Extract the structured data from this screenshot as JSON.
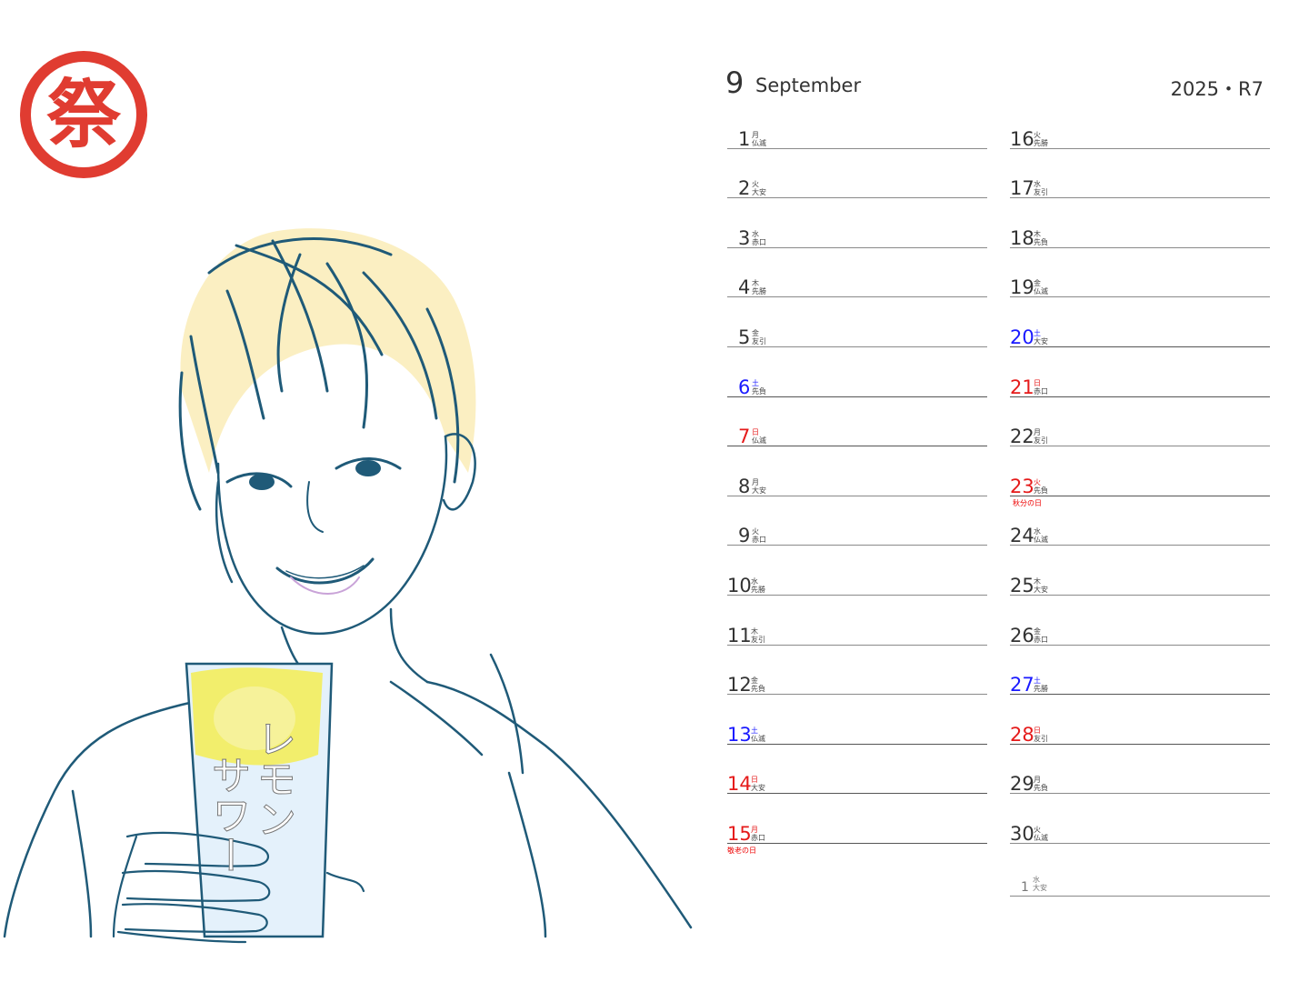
{
  "stamp": {
    "char": "祭"
  },
  "artwork": {
    "glass_text": [
      "レモン",
      "サワー"
    ]
  },
  "header": {
    "month_num": "9",
    "month_name": "September",
    "year": "2025・R7"
  },
  "colors": {
    "saturday": "#1a1aff",
    "sunday_holiday": "#e51a1a",
    "stamp": "#e03c31"
  },
  "left_days": [
    {
      "day": "1",
      "weekday": "月",
      "rokuyo": "仏滅",
      "type": "normal",
      "holiday": ""
    },
    {
      "day": "2",
      "weekday": "火",
      "rokuyo": "大安",
      "type": "normal",
      "holiday": ""
    },
    {
      "day": "3",
      "weekday": "水",
      "rokuyo": "赤口",
      "type": "normal",
      "holiday": ""
    },
    {
      "day": "4",
      "weekday": "木",
      "rokuyo": "先勝",
      "type": "normal",
      "holiday": ""
    },
    {
      "day": "5",
      "weekday": "金",
      "rokuyo": "友引",
      "type": "normal",
      "holiday": ""
    },
    {
      "day": "6",
      "weekday": "土",
      "rokuyo": "先負",
      "type": "sat",
      "holiday": ""
    },
    {
      "day": "7",
      "weekday": "日",
      "rokuyo": "仏滅",
      "type": "sun",
      "holiday": ""
    },
    {
      "day": "8",
      "weekday": "月",
      "rokuyo": "大安",
      "type": "normal",
      "holiday": ""
    },
    {
      "day": "9",
      "weekday": "火",
      "rokuyo": "赤口",
      "type": "normal",
      "holiday": ""
    },
    {
      "day": "10",
      "weekday": "水",
      "rokuyo": "先勝",
      "type": "normal",
      "holiday": ""
    },
    {
      "day": "11",
      "weekday": "木",
      "rokuyo": "友引",
      "type": "normal",
      "holiday": ""
    },
    {
      "day": "12",
      "weekday": "金",
      "rokuyo": "先負",
      "type": "normal",
      "holiday": ""
    },
    {
      "day": "13",
      "weekday": "土",
      "rokuyo": "仏滅",
      "type": "sat",
      "holiday": ""
    },
    {
      "day": "14",
      "weekday": "日",
      "rokuyo": "大安",
      "type": "sun",
      "holiday": ""
    },
    {
      "day": "15",
      "weekday": "月",
      "rokuyo": "赤口",
      "type": "sun",
      "holiday": "敬老の日"
    }
  ],
  "right_days": [
    {
      "day": "16",
      "weekday": "火",
      "rokuyo": "先勝",
      "type": "normal",
      "holiday": ""
    },
    {
      "day": "17",
      "weekday": "水",
      "rokuyo": "友引",
      "type": "normal",
      "holiday": ""
    },
    {
      "day": "18",
      "weekday": "木",
      "rokuyo": "先負",
      "type": "normal",
      "holiday": ""
    },
    {
      "day": "19",
      "weekday": "金",
      "rokuyo": "仏滅",
      "type": "normal",
      "holiday": ""
    },
    {
      "day": "20",
      "weekday": "土",
      "rokuyo": "大安",
      "type": "sat",
      "holiday": ""
    },
    {
      "day": "21",
      "weekday": "日",
      "rokuyo": "赤口",
      "type": "sun",
      "holiday": ""
    },
    {
      "day": "22",
      "weekday": "月",
      "rokuyo": "友引",
      "type": "normal",
      "holiday": ""
    },
    {
      "day": "23",
      "weekday": "火",
      "rokuyo": "先負",
      "type": "sun",
      "holiday": "秋分の日"
    },
    {
      "day": "24",
      "weekday": "水",
      "rokuyo": "仏滅",
      "type": "normal",
      "holiday": ""
    },
    {
      "day": "25",
      "weekday": "木",
      "rokuyo": "大安",
      "type": "normal",
      "holiday": ""
    },
    {
      "day": "26",
      "weekday": "金",
      "rokuyo": "赤口",
      "type": "normal",
      "holiday": ""
    },
    {
      "day": "27",
      "weekday": "土",
      "rokuyo": "先勝",
      "type": "sat",
      "holiday": ""
    },
    {
      "day": "28",
      "weekday": "日",
      "rokuyo": "友引",
      "type": "sun",
      "holiday": ""
    },
    {
      "day": "29",
      "weekday": "月",
      "rokuyo": "先負",
      "type": "normal",
      "holiday": ""
    },
    {
      "day": "30",
      "weekday": "火",
      "rokuyo": "仏滅",
      "type": "normal",
      "holiday": ""
    },
    {
      "day": "1",
      "weekday": "水",
      "rokuyo": "大安",
      "type": "extra",
      "holiday": ""
    }
  ]
}
